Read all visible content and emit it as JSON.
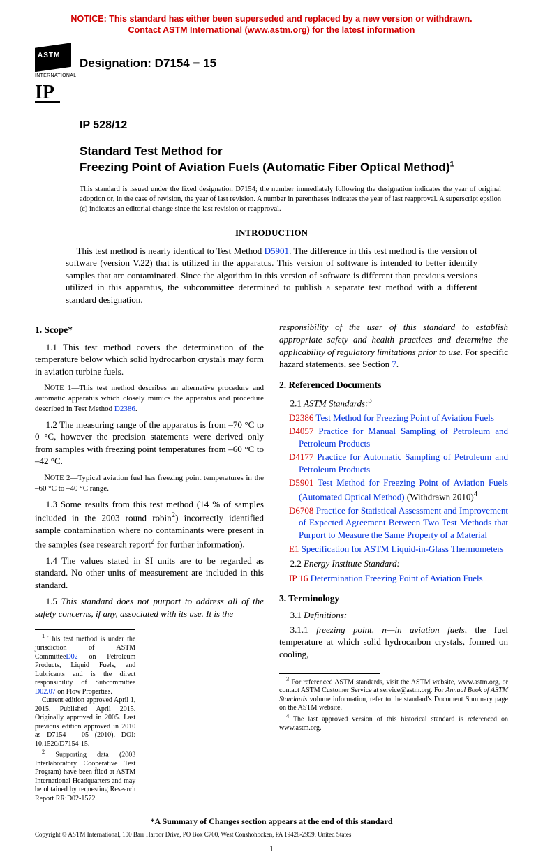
{
  "notice": {
    "line1": "NOTICE: This standard has either been superseded and replaced by a new version or withdrawn.",
    "line2": "Contact ASTM International (www.astm.org) for the latest information"
  },
  "logo": {
    "international": "INTERNATIONAL",
    "ip": "IP"
  },
  "designation": "Designation: D7154 − 15",
  "ip_line": "IP 528/12",
  "title": {
    "line1": "Standard Test Method for",
    "line2": "Freezing Point of Aviation Fuels (Automatic Fiber Optical Method)",
    "sup": "1"
  },
  "issue_note": "This standard is issued under the fixed designation D7154; the number immediately following the designation indicates the year of original adoption or, in the case of revision, the year of last revision. A number in parentheses indicates the year of last reapproval. A superscript epsilon (ε) indicates an editorial change since the last revision or reapproval.",
  "intro": {
    "head": "INTRODUCTION",
    "body_pre": "This test method is nearly identical to Test Method ",
    "link": "D5901",
    "body_post": ". The difference in this test method is the version of software (version V.22) that is utilized in the apparatus. This version of software is intended to better identify samples that are contaminated. Since the algorithm in this version of software is different than previous versions utilized in this apparatus, the subcommittee determined to publish a separate test method with a different standard designation."
  },
  "sections": {
    "scope_head": "1. Scope*",
    "p11": "1.1 This test method covers the determination of the temperature below which solid hydrocarbon crystals may form in aviation turbine fuels.",
    "note1_pre": "NOTE 1—This test method describes an alternative procedure and automatic apparatus which closely mimics the apparatus and procedure described in Test Method ",
    "note1_link": "D2386",
    "note1_post": ".",
    "p12": "1.2 The measuring range of the apparatus is from –70 °C to 0 °C, however the precision statements were derived only from samples with freezing point temperatures from –60 °C to –42 °C.",
    "note2": "NOTE 2—Typical aviation fuel has freezing point temperatures in the –60 °C to –40 °C range.",
    "p13_a": "1.3 Some results from this test method (14 % of samples included in the 2003 round robin",
    "p13_sup": "2",
    "p13_b": ") incorrectly identified sample contamination where no contaminants were present in the samples (see research report",
    "p13_sup2": "2",
    "p13_c": " for further information).",
    "p14": "1.4 The values stated in SI units are to be regarded as standard. No other units of measurement are included in this standard.",
    "p15_a": "1.5 ",
    "p15_italic": "This standard does not purport to address all of the safety concerns, if any, associated with its use. It is the",
    "p15r_italic": "responsibility of the user of this standard to establish appropriate safety and health practices and determine the applicability of regulatory limitations prior to use.",
    "p15r_post_a": " For specific hazard statements, see Section ",
    "p15r_link": "7",
    "p15r_post_b": ".",
    "ref_head": "2. Referenced Documents",
    "ref_21": "2.1 ",
    "ref_21_i": "ASTM Standards:",
    "ref_21_sup": "3",
    "refs": [
      {
        "code": "D2386",
        "text": "Test Method for Freezing Point of Aviation Fuels"
      },
      {
        "code": "D4057",
        "text": "Practice for Manual Sampling of Petroleum and Petroleum Products"
      },
      {
        "code": "D4177",
        "text": "Practice for Automatic Sampling of Petroleum and Petroleum Products"
      },
      {
        "code": "D5901",
        "text": "Test Method for Freezing Point of Aviation Fuels (Automated Optical Method)",
        "tail": " (Withdrawn 2010)",
        "tailsup": "4"
      },
      {
        "code": "D6708",
        "text": "Practice for Statistical Assessment and Improvement of Expected Agreement Between Two Test Methods that Purport to Measure the Same Property of a Material"
      },
      {
        "code": "E1",
        "text": "Specification for ASTM Liquid-in-Glass Thermometers"
      }
    ],
    "ref_22": "2.2 ",
    "ref_22_i": "Energy Institute Standard:",
    "ip16_code": "IP 16",
    "ip16_text": "Determination Freezing Point of Aviation Fuels",
    "term_head": "3. Terminology",
    "p31": "3.1 ",
    "p31_i": "Definitions:",
    "p311_a": "3.1.1 ",
    "p311_i": "freezing point, n—in aviation fuels,",
    "p311_b": " the fuel temperature at which solid hydrocarbon crystals, formed on cooling,"
  },
  "footnotes_left": {
    "f1_a": "This test method is under the jurisdiction of ASTM Committee",
    "f1_l1": "D02",
    "f1_b": " on Petroleum Products, Liquid Fuels, and Lubricants and is the direct responsibility of Subcommittee ",
    "f1_l2": "D02.07",
    "f1_c": " on Flow Properties.",
    "f1_cur": "Current edition approved April 1, 2015. Published April 2015. Originally approved in 2005. Last previous edition approved in 2010 as D7154 – 05 (2010). DOI: 10.1520/D7154-15.",
    "f2": "Supporting data (2003 Interlaboratory Cooperative Test Program) have been filed at ASTM International Headquarters and may be obtained by requesting Research Report RR:D02-1572."
  },
  "footnotes_right": {
    "f3_a": "For referenced ASTM standards, visit the ASTM website, www.astm.org, or contact ASTM Customer Service at service@astm.org. For ",
    "f3_i": "Annual Book of ASTM Standards",
    "f3_b": " volume information, refer to the standard's Document Summary page on the ASTM website.",
    "f4": "The last approved version of this historical standard is referenced on www.astm.org."
  },
  "summary": "*A Summary of Changes section appears at the end of this standard",
  "copyright": "Copyright © ASTM International, 100 Barr Harbor Drive, PO Box C700, West Conshohocken, PA 19428-2959. United States",
  "pagenum": "1"
}
